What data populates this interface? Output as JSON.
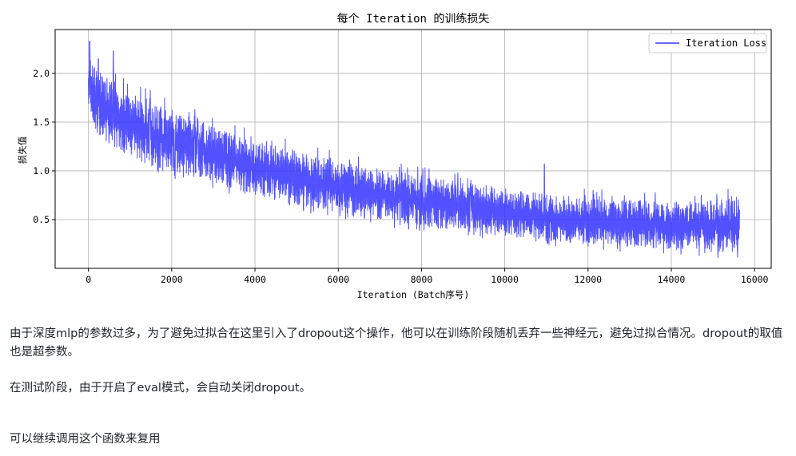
{
  "chart_data": {
    "type": "line",
    "title": "每个 Iteration 的训练损失",
    "xlabel": "Iteration (Batch序号)",
    "ylabel": "损失值",
    "xlim": [
      -800,
      16400
    ],
    "ylim": [
      0.0,
      2.45
    ],
    "xticks": [
      0,
      2000,
      4000,
      6000,
      8000,
      10000,
      12000,
      14000,
      16000
    ],
    "xtick_labels": [
      "0",
      "2000",
      "4000",
      "6000",
      "8000",
      "10000",
      "12000",
      "14000",
      "16000"
    ],
    "yticks": [
      0.5,
      1.0,
      1.5,
      2.0
    ],
    "ytick_labels": [
      "0.5",
      "1.0",
      "1.5",
      "2.0"
    ],
    "grid": true,
    "legend_position": "top-right",
    "series": [
      {
        "name": "Iteration Loss",
        "color": "#3333ff",
        "x_range": [
          0,
          15640
        ],
        "trend_x": [
          0,
          100,
          300,
          600,
          1000,
          1500,
          2000,
          3000,
          4000,
          5000,
          6000,
          7000,
          8000,
          9000,
          10000,
          11000,
          12000,
          13000,
          14000,
          15000,
          15640
        ],
        "trend_low": [
          1.65,
          1.45,
          1.35,
          1.25,
          1.15,
          1.05,
          1.0,
          0.88,
          0.75,
          0.65,
          0.58,
          0.5,
          0.43,
          0.38,
          0.33,
          0.28,
          0.25,
          0.22,
          0.2,
          0.17,
          0.16
        ],
        "trend_high": [
          2.2,
          2.1,
          2.0,
          1.9,
          1.8,
          1.7,
          1.6,
          1.45,
          1.3,
          1.2,
          1.1,
          1.02,
          0.95,
          0.88,
          0.82,
          0.76,
          0.72,
          0.7,
          0.68,
          0.7,
          0.72
        ],
        "peaks": [
          [
            30,
            2.33
          ],
          [
            600,
            2.23
          ],
          [
            10950,
            1.07
          ]
        ]
      }
    ]
  },
  "text": {
    "para1": "由于深度mlp的参数过多，为了避免过拟合在这里引入了dropout这个操作，他可以在训练阶段随机丢弃一些神经元，避免过拟合情况。dropout的取值也是超参数。",
    "para2": "在测试阶段，由于开启了eval模式，会自动关闭dropout。",
    "para3": "可以继续调用这个函数来复用"
  }
}
